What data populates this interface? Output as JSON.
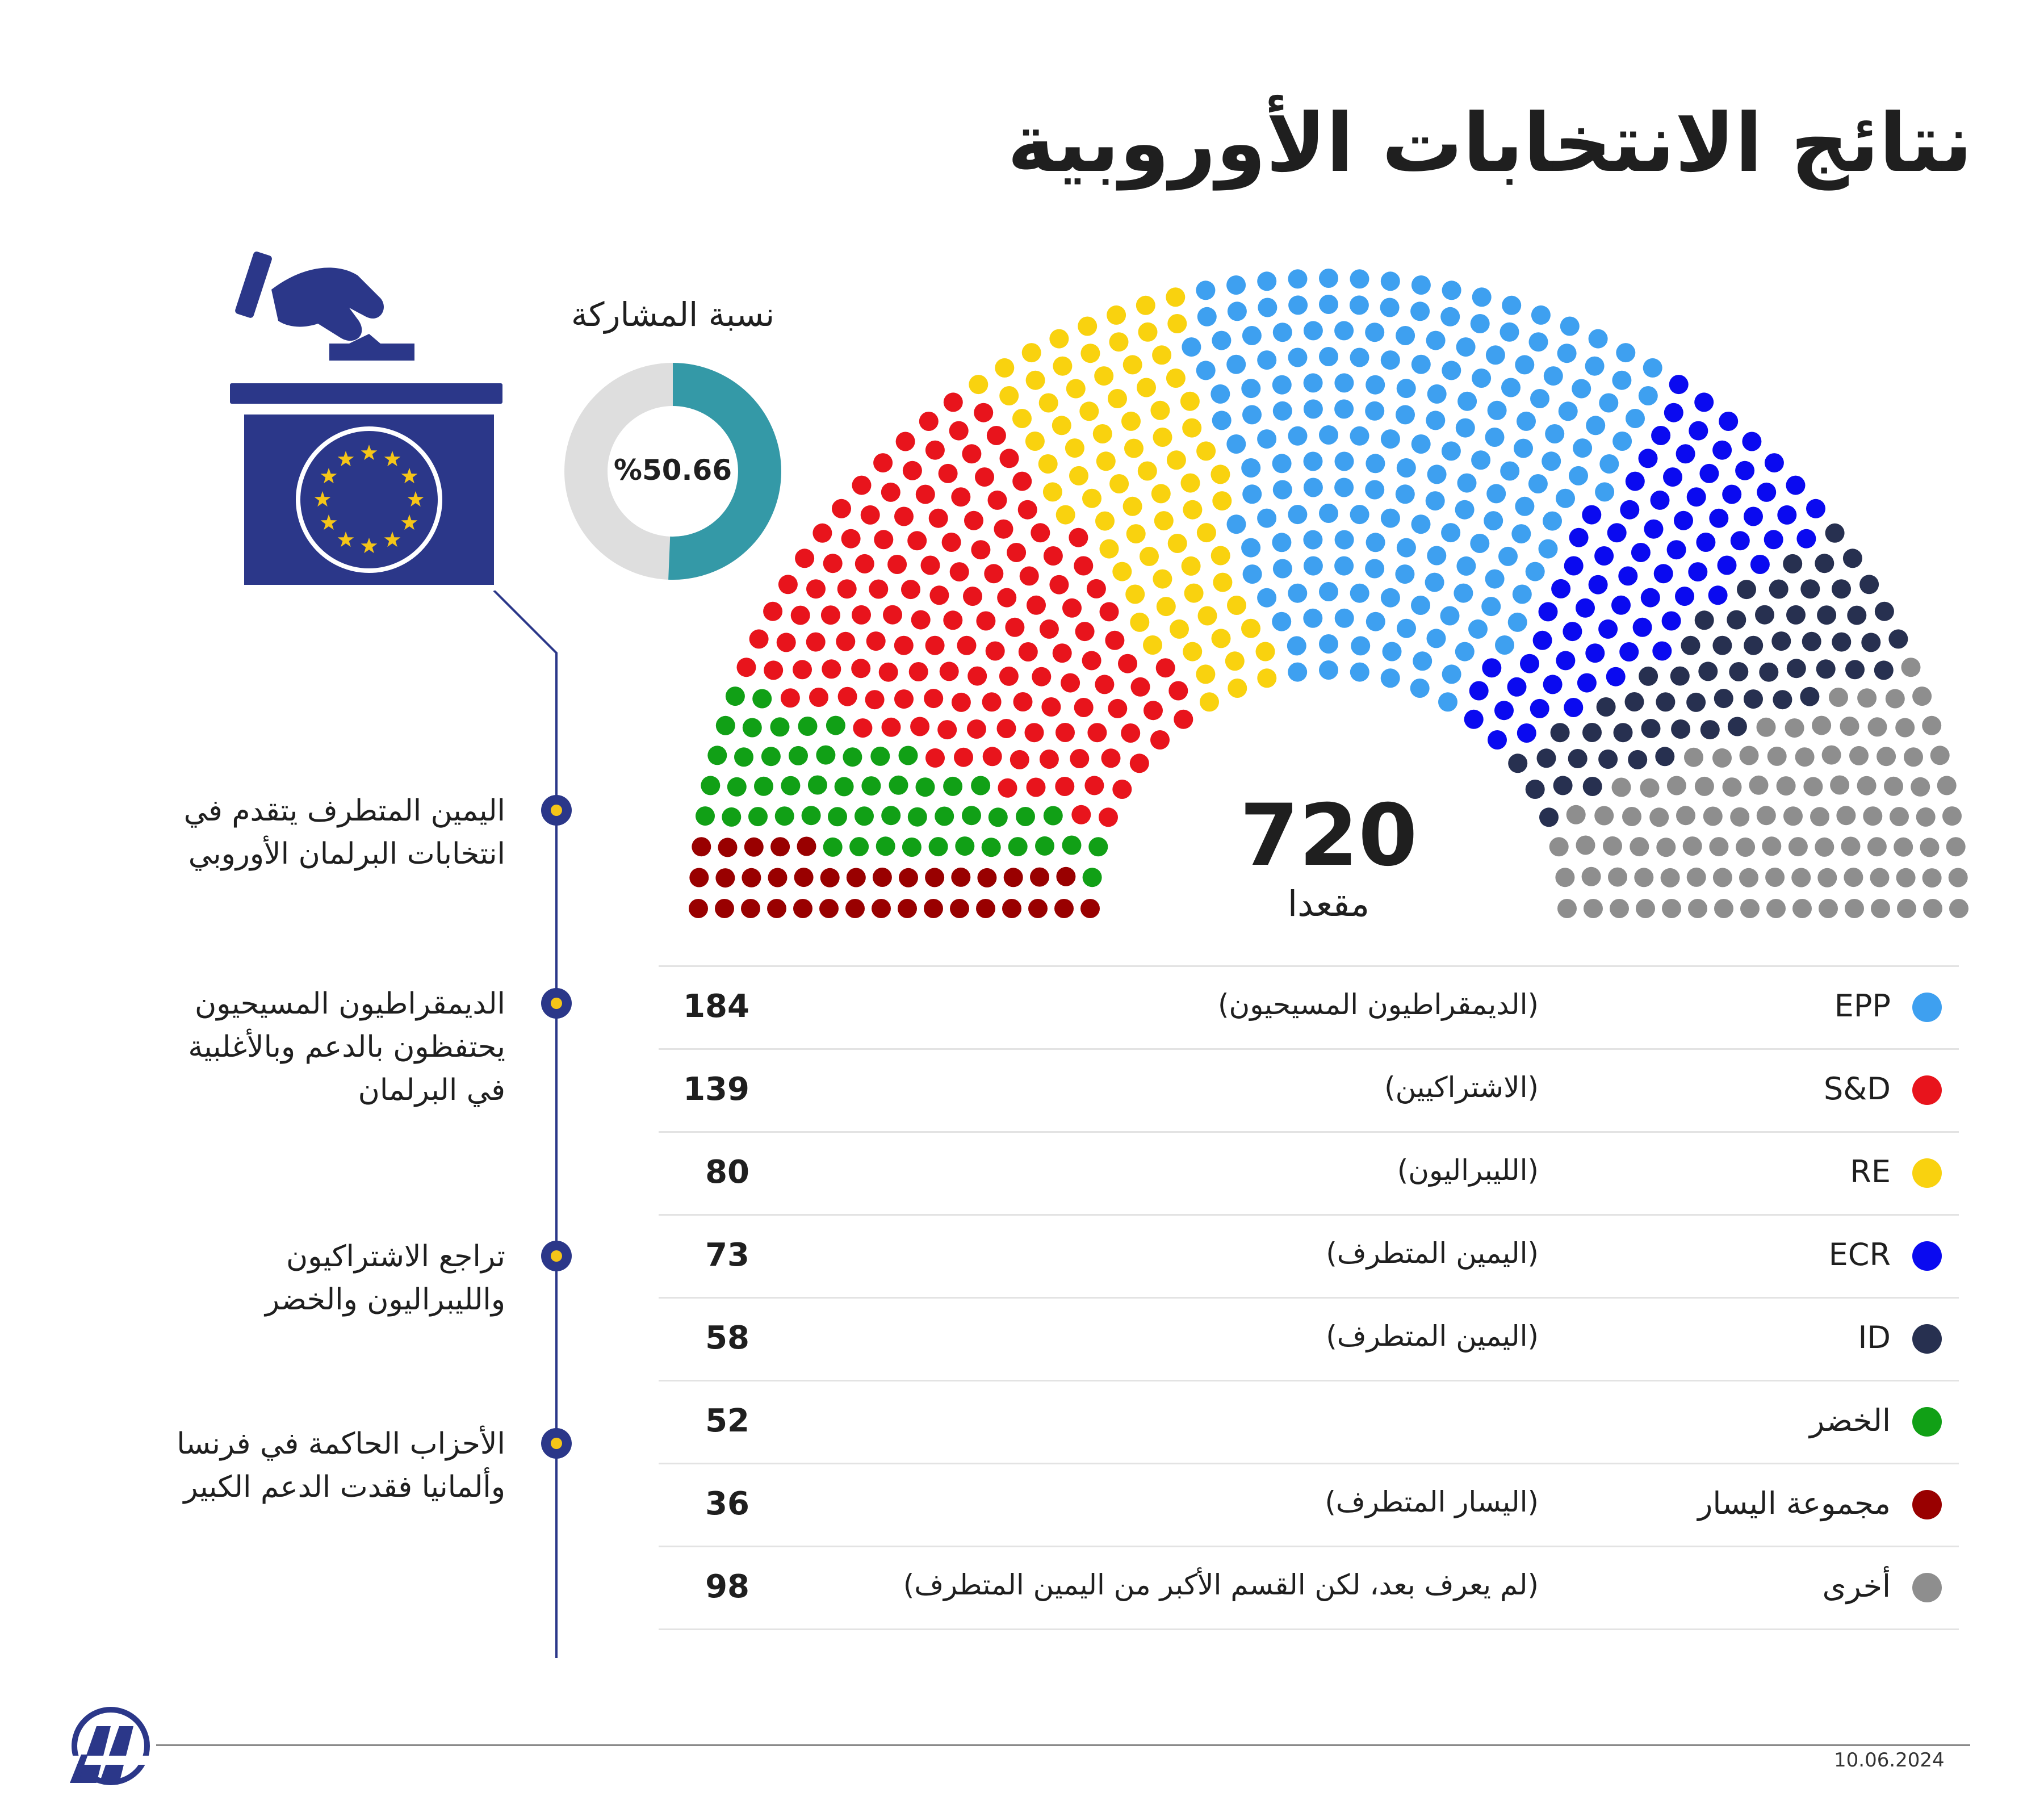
{
  "title": "نتائج الانتخابات الأوروبية",
  "turnout": {
    "label": "نسبة المشاركة",
    "value_text": "%50.66",
    "value": 50.66
  },
  "seats": {
    "total": "720",
    "unit": "مقعدا"
  },
  "notes": [
    [
      "اليمين المتطرف يتقدم في",
      "انتخابات البرلمان الأوروبي"
    ],
    [
      "الديمقراطيون المسيحيون",
      "يحتفظون بالدعم وبالأغلبية",
      "في البرلمان"
    ],
    [
      "تراجع الاشتراكيون",
      "والليبراليون والخضر"
    ],
    [
      "الأحزاب الحاكمة في فرنسا",
      "وألمانيا فقدت الدعم الكبير"
    ]
  ],
  "chart_data": {
    "type": "parliament",
    "total_seats": 720,
    "series": [
      {
        "name": "EPP",
        "description": "(الديمقراطيون المسيحيون)",
        "value": 184,
        "color": "#3ea0f0"
      },
      {
        "name": "S&D",
        "description": "(الاشتراكيين)",
        "value": 139,
        "color": "#e8141c"
      },
      {
        "name": "RE",
        "description": "(الليبراليون)",
        "value": 80,
        "color": "#f9d20f"
      },
      {
        "name": "ECR",
        "description": "(اليمين المتطرف)",
        "value": 73,
        "color": "#0a0af0"
      },
      {
        "name": "ID",
        "description": "(اليمين المتطرف)",
        "value": 58,
        "color": "#273050"
      },
      {
        "name": "الخضر",
        "description": "",
        "value": 52,
        "color": "#11a016"
      },
      {
        "name": "مجموعة اليسار",
        "description": "(اليسار المتطرف)",
        "value": 36,
        "color": "#990000"
      },
      {
        "name": "أخرى",
        "description": "(لم يعرف بعد، لكن القسم الأكبر من اليمين المتطرف)",
        "value": 98,
        "color": "#8e8e8e"
      }
    ],
    "arc_order": [
      "مجموعة اليسار",
      "الخضر",
      "S&D",
      "RE",
      "EPP",
      "ECR",
      "ID",
      "أخرى"
    ]
  },
  "colors": {
    "accent": "#2b3789",
    "turnout": "#3499a7",
    "turnout_track": "#dedede",
    "eu_star": "#f5c518"
  },
  "date": "10.06.2024",
  "icons": [
    "ballot-box-icon",
    "eu-flag-icon",
    "aa-logo-icon"
  ]
}
